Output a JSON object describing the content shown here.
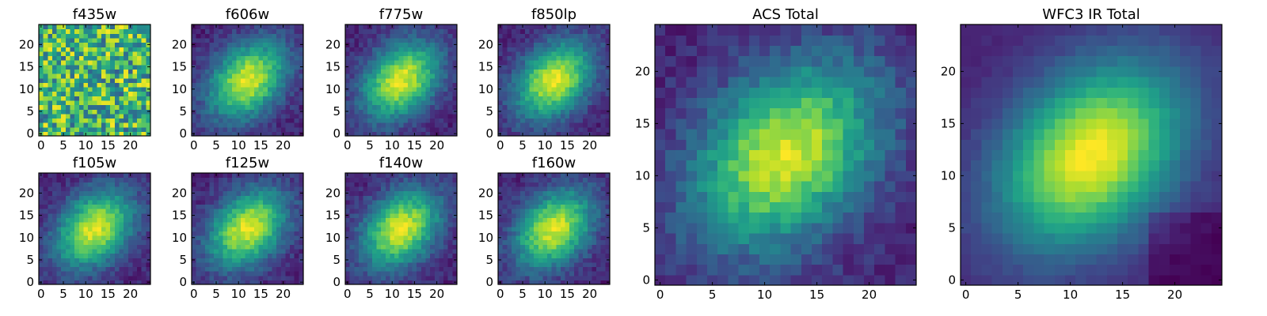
{
  "figure": {
    "colormap": "viridis",
    "image_size": 25,
    "frame_color": "#000000"
  },
  "chart_data": [
    {
      "type": "heatmap",
      "title": "f435w",
      "xticks": [
        0,
        5,
        10,
        15,
        20
      ],
      "yticks": [
        0,
        5,
        10,
        15,
        20
      ],
      "xlim": [
        0,
        24
      ],
      "ylim": [
        0,
        24
      ],
      "pattern": "noise"
    },
    {
      "type": "heatmap",
      "title": "f606w",
      "xticks": [
        0,
        5,
        10,
        15,
        20
      ],
      "yticks": [
        0,
        5,
        10,
        15,
        20
      ],
      "xlim": [
        0,
        24
      ],
      "ylim": [
        0,
        24
      ],
      "center": [
        12,
        12
      ],
      "pattern": "source"
    },
    {
      "type": "heatmap",
      "title": "f775w",
      "xticks": [
        0,
        5,
        10,
        15,
        20
      ],
      "yticks": [
        0,
        5,
        10,
        15,
        20
      ],
      "xlim": [
        0,
        24
      ],
      "ylim": [
        0,
        24
      ],
      "center": [
        12,
        12
      ],
      "pattern": "source"
    },
    {
      "type": "heatmap",
      "title": "f850lp",
      "xticks": [
        0,
        5,
        10,
        15,
        20
      ],
      "yticks": [
        0,
        5,
        10,
        15,
        20
      ],
      "xlim": [
        0,
        24
      ],
      "ylim": [
        0,
        24
      ],
      "center": [
        12,
        12
      ],
      "pattern": "source"
    },
    {
      "type": "heatmap",
      "title": "f105w",
      "xticks": [
        0,
        5,
        10,
        15,
        20
      ],
      "yticks": [
        0,
        5,
        10,
        15,
        20
      ],
      "xlim": [
        0,
        24
      ],
      "ylim": [
        0,
        24
      ],
      "center": [
        12,
        12
      ],
      "pattern": "source"
    },
    {
      "type": "heatmap",
      "title": "f125w",
      "xticks": [
        0,
        5,
        10,
        15,
        20
      ],
      "yticks": [
        0,
        5,
        10,
        15,
        20
      ],
      "xlim": [
        0,
        24
      ],
      "ylim": [
        0,
        24
      ],
      "center": [
        12,
        12
      ],
      "pattern": "source"
    },
    {
      "type": "heatmap",
      "title": "f140w",
      "xticks": [
        0,
        5,
        10,
        15,
        20
      ],
      "yticks": [
        0,
        5,
        10,
        15,
        20
      ],
      "xlim": [
        0,
        24
      ],
      "ylim": [
        0,
        24
      ],
      "center": [
        12,
        12
      ],
      "pattern": "source"
    },
    {
      "type": "heatmap",
      "title": "f160w",
      "xticks": [
        0,
        5,
        10,
        15,
        20
      ],
      "yticks": [
        0,
        5,
        10,
        15,
        20
      ],
      "xlim": [
        0,
        24
      ],
      "ylim": [
        0,
        24
      ],
      "center": [
        12,
        12
      ],
      "pattern": "source"
    },
    {
      "type": "heatmap",
      "title": "ACS Total",
      "xticks": [
        0,
        5,
        10,
        15,
        20
      ],
      "yticks": [
        0,
        5,
        10,
        15,
        20
      ],
      "xlim": [
        0,
        24
      ],
      "ylim": [
        0,
        24
      ],
      "center": [
        12,
        12
      ],
      "pattern": "source"
    },
    {
      "type": "heatmap",
      "title": "WFC3 IR Total",
      "xticks": [
        0,
        5,
        10,
        15,
        20
      ],
      "yticks": [
        0,
        5,
        10,
        15,
        20
      ],
      "xlim": [
        0,
        24
      ],
      "ylim": [
        0,
        24
      ],
      "center": [
        12,
        12
      ],
      "pattern": "smooth"
    }
  ]
}
